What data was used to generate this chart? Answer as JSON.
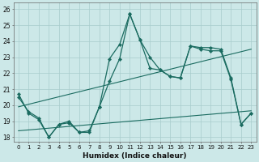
{
  "title": "",
  "xlabel": "Humidex (Indice chaleur)",
  "background_color": "#cce8e8",
  "grid_color": "#a8cccc",
  "line_color": "#1a6b60",
  "xlim": [
    -0.5,
    23.5
  ],
  "ylim": [
    17.7,
    26.4
  ],
  "yticks": [
    18,
    19,
    20,
    21,
    22,
    23,
    24,
    25,
    26
  ],
  "xticks": [
    0,
    1,
    2,
    3,
    4,
    5,
    6,
    7,
    8,
    9,
    10,
    11,
    12,
    13,
    14,
    15,
    16,
    17,
    18,
    19,
    20,
    21,
    22,
    23
  ],
  "series1_y": [
    20.7,
    19.5,
    19.1,
    18.0,
    18.8,
    19.0,
    18.3,
    18.3,
    19.9,
    22.9,
    23.8,
    25.7,
    24.1,
    23.0,
    22.2,
    21.8,
    21.7,
    23.7,
    23.6,
    23.6,
    23.5,
    21.7,
    18.8,
    19.5
  ],
  "series2_y": [
    20.5,
    19.6,
    19.2,
    18.0,
    18.8,
    18.9,
    18.3,
    18.4,
    19.9,
    21.5,
    22.9,
    25.7,
    24.1,
    22.3,
    22.2,
    21.8,
    21.7,
    23.7,
    23.5,
    23.4,
    23.4,
    21.6,
    18.8,
    19.5
  ],
  "trend1_x0": 0,
  "trend1_y0": 18.4,
  "trend1_x1": 23,
  "trend1_y1": 19.65,
  "trend2_x0": 0,
  "trend2_y0": 19.9,
  "trend2_x1": 23,
  "trend2_y1": 23.5
}
